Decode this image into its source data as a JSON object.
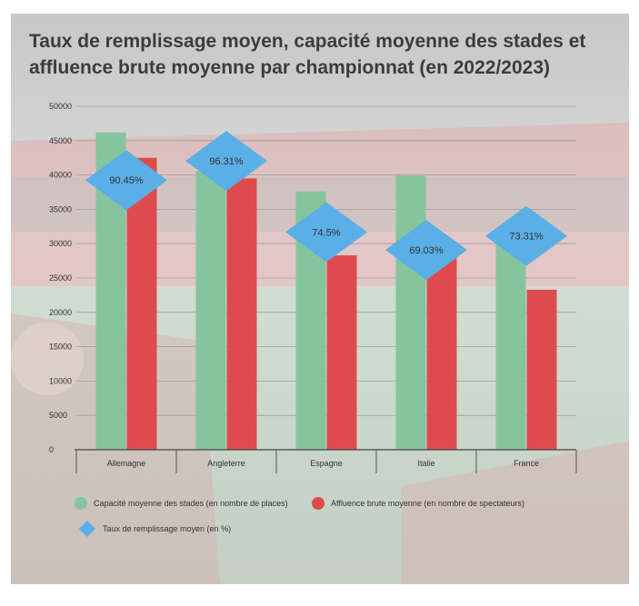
{
  "chart_data": {
    "type": "bar",
    "title": "Taux de remplissage moyen, capacité moyenne des stades et affluence brute moyenne par championnat (en 2022/2023)",
    "categories": [
      "Allemagne",
      "Angleterre",
      "Espagne",
      "Italie",
      "France"
    ],
    "ylim": [
      0,
      50000
    ],
    "yticks": [
      0,
      5000,
      10000,
      15000,
      20000,
      25000,
      30000,
      35000,
      40000,
      45000,
      50000
    ],
    "grid": true,
    "legend_position": "bottom",
    "series": [
      {
        "name": "Capacité moyenne des stades (en nombre de places)",
        "color": "#86c49e",
        "values": [
          46200,
          40600,
          37600,
          39900,
          30000
        ]
      },
      {
        "name": "Affluence brute moyenne (en nombre de spectateurs)",
        "color": "#dd4b4f",
        "values": [
          42500,
          39500,
          28300,
          28300,
          23300
        ]
      }
    ],
    "fill_rate": {
      "name": "Taux de remplissage moyen (en %)",
      "color": "#5aafe6",
      "values": [
        90.45,
        96.31,
        74.5,
        69.03,
        73.31
      ],
      "labels": [
        "90.45%",
        "96.31%",
        "74.5%",
        "69.03%",
        "73.31%"
      ]
    }
  }
}
